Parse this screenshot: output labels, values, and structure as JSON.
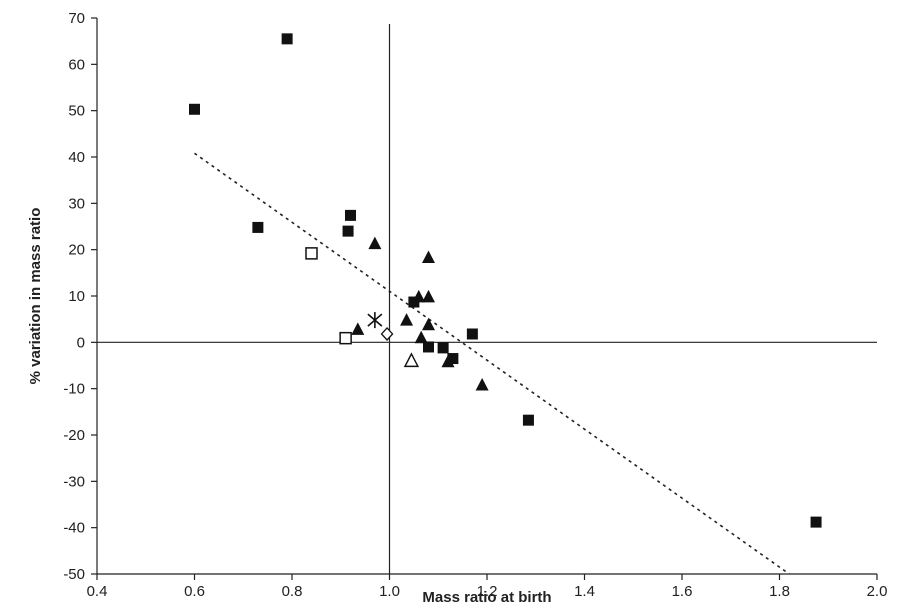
{
  "chart_data": {
    "type": "scatter",
    "title": "",
    "xlabel": "Mass ratio at birth",
    "ylabel": "% variation in mass ratio",
    "xlim": [
      0.4,
      2.0
    ],
    "ylim": [
      -50,
      70
    ],
    "x_ticks": [
      "0.4",
      "0.6",
      "0.8",
      "1.0",
      "1.2",
      "1.4",
      "1.6",
      "1.8",
      "2.0"
    ],
    "y_ticks": [
      "70",
      "60",
      "50",
      "40",
      "30",
      "20",
      "10",
      "0",
      "-10",
      "-20",
      "-30",
      "-40",
      "-50"
    ],
    "grid": false,
    "legend": "none",
    "reference_lines": {
      "x": 1.0,
      "y": 0
    },
    "trendline": {
      "style": "dotted",
      "x": [
        0.6,
        1.82
      ],
      "y": [
        40.8,
        -50
      ]
    },
    "series": [
      {
        "marker": "filled-square",
        "points": [
          {
            "x": 0.6,
            "y": 50.3
          },
          {
            "x": 0.79,
            "y": 65.5
          },
          {
            "x": 0.73,
            "y": 24.8
          },
          {
            "x": 0.92,
            "y": 27.4
          },
          {
            "x": 0.915,
            "y": 24.0
          },
          {
            "x": 1.05,
            "y": 8.7
          },
          {
            "x": 1.08,
            "y": -1.0
          },
          {
            "x": 1.11,
            "y": -1.2
          },
          {
            "x": 1.13,
            "y": -3.5
          },
          {
            "x": 1.17,
            "y": 1.8
          },
          {
            "x": 1.285,
            "y": -16.8
          },
          {
            "x": 1.875,
            "y": -38.8
          }
        ]
      },
      {
        "marker": "filled-triangle",
        "points": [
          {
            "x": 0.935,
            "y": 2.8
          },
          {
            "x": 0.97,
            "y": 21.3
          },
          {
            "x": 1.035,
            "y": 4.8
          },
          {
            "x": 1.06,
            "y": 9.8
          },
          {
            "x": 1.08,
            "y": 9.8
          },
          {
            "x": 1.08,
            "y": 18.3
          },
          {
            "x": 1.065,
            "y": 1.0
          },
          {
            "x": 1.08,
            "y": 3.8
          },
          {
            "x": 1.12,
            "y": -4.2
          },
          {
            "x": 1.19,
            "y": -9.2
          }
        ]
      },
      {
        "marker": "open-square",
        "points": [
          {
            "x": 0.84,
            "y": 19.2
          },
          {
            "x": 0.91,
            "y": 0.9
          }
        ]
      },
      {
        "marker": "open-triangle",
        "points": [
          {
            "x": 1.045,
            "y": -4.0
          }
        ]
      },
      {
        "marker": "open-diamond",
        "points": [
          {
            "x": 0.995,
            "y": 1.8
          }
        ]
      },
      {
        "marker": "asterisk",
        "points": [
          {
            "x": 0.97,
            "y": 4.8
          }
        ]
      }
    ]
  }
}
